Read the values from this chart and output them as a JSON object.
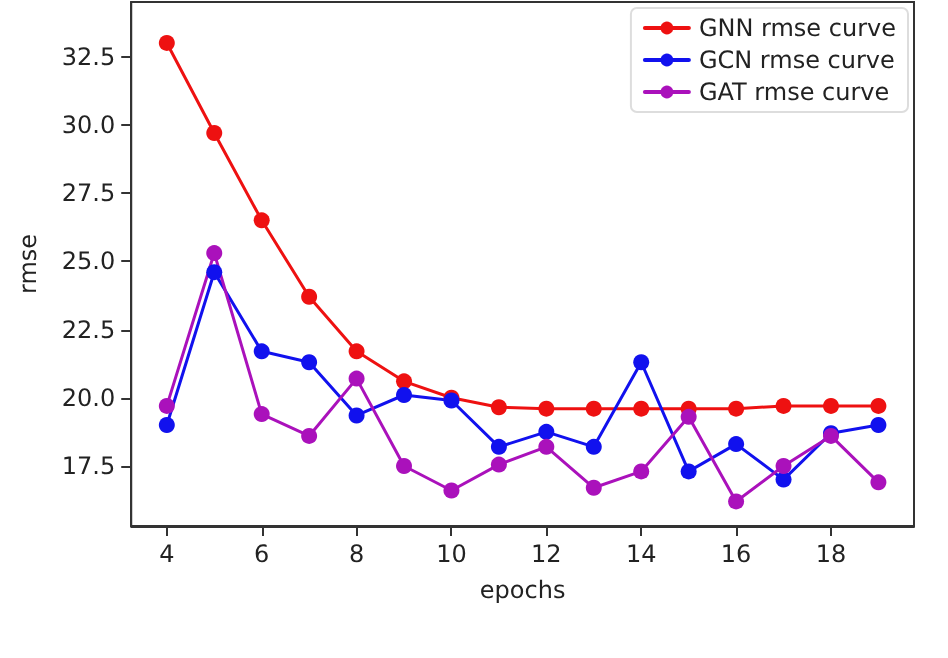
{
  "chart_data": {
    "type": "line",
    "xlabel": "epochs",
    "ylabel": "rmse",
    "x": [
      4,
      5,
      6,
      7,
      8,
      9,
      10,
      11,
      12,
      13,
      14,
      15,
      16,
      17,
      18,
      19
    ],
    "series": [
      {
        "name": "GNN rmse curve",
        "color": "#ee1111",
        "values": [
          33.0,
          29.7,
          26.5,
          23.7,
          21.7,
          20.6,
          20.0,
          19.65,
          19.6,
          19.6,
          19.6,
          19.6,
          19.6,
          19.7,
          19.7,
          19.7
        ]
      },
      {
        "name": "GCN rmse curve",
        "color": "#1111ee",
        "values": [
          19.0,
          24.6,
          21.7,
          21.3,
          19.35,
          20.1,
          19.9,
          18.2,
          18.75,
          18.2,
          21.3,
          17.3,
          18.3,
          17.0,
          18.7,
          19.0
        ]
      },
      {
        "name": "GAT rmse curve",
        "color": "#aa11bb",
        "values": [
          19.7,
          25.3,
          19.4,
          18.6,
          20.7,
          17.5,
          16.6,
          17.55,
          18.2,
          16.7,
          17.3,
          19.3,
          16.2,
          17.5,
          18.6,
          16.9
        ]
      }
    ],
    "xlim": [
      3.25,
      19.75
    ],
    "xticks": [
      4,
      6,
      8,
      10,
      12,
      14,
      16,
      18
    ],
    "ylim": [
      15.3,
      34.5
    ],
    "yticks": [
      {
        "value": 17.5,
        "label": "17.5"
      },
      {
        "value": 20,
        "label": "20.0"
      },
      {
        "value": 22.5,
        "label": "22.5"
      },
      {
        "value": 25,
        "label": "25.0"
      },
      {
        "value": 27.5,
        "label": "27.5"
      },
      {
        "value": 30,
        "label": "30.0"
      },
      {
        "value": 32.5,
        "label": "32.5"
      }
    ],
    "grid": false,
    "legend": "top right",
    "marker": "circle",
    "line_style": "solid"
  }
}
